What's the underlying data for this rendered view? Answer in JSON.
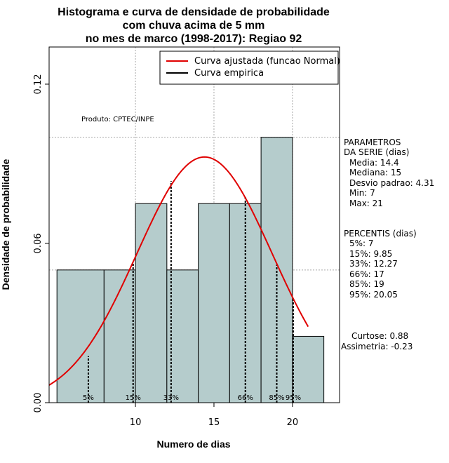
{
  "chart_data": {
    "type": "bar",
    "title_lines": [
      "Histograma e curva de densidade de probabilidade",
      "com chuva acima de 5 mm",
      "no mes de marco (1998-2017): Regiao 92"
    ],
    "xlabel": "Numero de dias",
    "ylabel": "Densidade de probabilidade",
    "xlim": [
      4.5,
      23
    ],
    "ylim": [
      0,
      0.134
    ],
    "x_ticks": [
      10,
      15,
      20
    ],
    "y_ticks": [
      0.0,
      0.06,
      0.12
    ],
    "y_tick_labels": [
      "0.00",
      "0.06",
      "0.12"
    ],
    "grid": true,
    "grid_x": [
      10,
      15,
      20
    ],
    "grid_y": [
      0.05,
      0.1
    ],
    "bars": [
      {
        "x0": 5,
        "x1": 8,
        "density": 0.05
      },
      {
        "x0": 8,
        "x1": 10,
        "density": 0.05
      },
      {
        "x0": 10,
        "x1": 12,
        "density": 0.075
      },
      {
        "x0": 12,
        "x1": 14,
        "density": 0.05
      },
      {
        "x0": 14,
        "x1": 16,
        "density": 0.075
      },
      {
        "x0": 16,
        "x1": 18,
        "density": 0.075
      },
      {
        "x0": 18,
        "x1": 20,
        "density": 0.1
      },
      {
        "x0": 20,
        "x1": 22,
        "density": 0.025
      }
    ],
    "series": [
      {
        "name": "Curva ajustada (funcao Normal)",
        "kind": "normal",
        "mean": 14.4,
        "sd": 4.31,
        "x_range": [
          4.5,
          21
        ]
      },
      {
        "name": "Curva empirica",
        "kind": "empirical"
      }
    ],
    "percentile_markers": [
      {
        "label": "5%",
        "x": 7,
        "y": 0.0175
      },
      {
        "label": "15%",
        "x": 9.85,
        "y": 0.053
      },
      {
        "label": "33%",
        "x": 12.27,
        "y": 0.0835
      },
      {
        "label": "66%",
        "x": 17,
        "y": 0.0775
      },
      {
        "label": "85%",
        "x": 19,
        "y": 0.052
      },
      {
        "label": "95%",
        "x": 20.05,
        "y": 0.0395
      }
    ],
    "legend_placement": "top-right",
    "colors": {
      "bars": "#b5cccc",
      "normal_curve": "#e00000",
      "empirical": "#000000",
      "grid": "#a9a9a9"
    },
    "annotation": "Produto: CPTEC/INPE"
  },
  "side_panel": {
    "parametros_title": [
      "PARAMETROS",
      "DA SERIE (dias)"
    ],
    "parametros": [
      "Media: 14.4",
      "Mediana: 15",
      "Desvio padrao: 4.31",
      "Min: 7",
      "Max: 21"
    ],
    "percentis_title": "PERCENTIS (dias)",
    "percentis": [
      "5%: 7",
      "15%: 9.85",
      "33%: 12.27",
      "66%: 17",
      "85%: 19",
      "95%: 20.05"
    ],
    "curtose": "Curtose: 0.88",
    "assimetria": "Assimetria: -0.23"
  }
}
